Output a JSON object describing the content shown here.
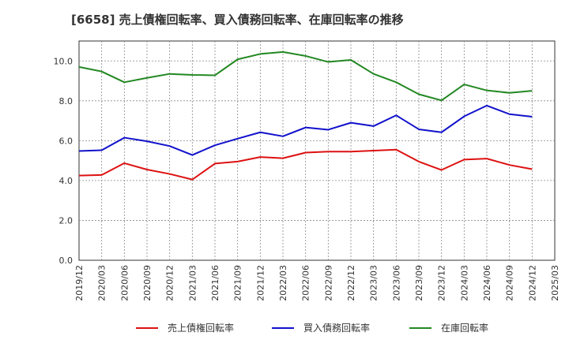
{
  "chart_data": {
    "type": "line",
    "title": "[6658]  売上債権回転率、買入債務回転率、在庫回転率の推移",
    "xlabel": "",
    "ylabel": "",
    "ylim": [
      0,
      11
    ],
    "yticks": [
      "0.0",
      "2.0",
      "4.0",
      "6.0",
      "8.0",
      "10.0"
    ],
    "ytick_values": [
      0,
      2,
      4,
      6,
      8,
      10
    ],
    "categories": [
      "2019/12",
      "2020/03",
      "2020/06",
      "2020/09",
      "2020/12",
      "2021/03",
      "2021/06",
      "2021/09",
      "2021/12",
      "2022/03",
      "2022/06",
      "2022/09",
      "2022/12",
      "2023/03",
      "2023/06",
      "2023/09",
      "2023/12",
      "2024/03",
      "2024/06",
      "2024/09",
      "2024/12",
      "2025/03"
    ],
    "grid": true,
    "legend_position": "bottom",
    "series": [
      {
        "name": "売上債権回転率",
        "color": "#dd1111",
        "values": [
          4.25,
          4.28,
          4.87,
          4.55,
          4.33,
          4.05,
          4.85,
          4.95,
          5.18,
          5.12,
          5.4,
          5.45,
          5.45,
          5.5,
          5.55,
          4.95,
          4.53,
          5.05,
          5.1,
          4.78,
          4.57,
          null
        ]
      },
      {
        "name": "買入債務回転率",
        "color": "#1111cc",
        "values": [
          5.48,
          5.52,
          6.15,
          5.97,
          5.73,
          5.28,
          5.77,
          6.1,
          6.42,
          6.22,
          6.66,
          6.55,
          6.9,
          6.73,
          7.27,
          6.57,
          6.42,
          7.22,
          7.76,
          7.33,
          7.2,
          null
        ]
      },
      {
        "name": "在庫回転率",
        "color": "#228822",
        "values": [
          9.7,
          9.47,
          8.93,
          9.15,
          9.35,
          9.3,
          9.28,
          10.08,
          10.35,
          10.45,
          10.25,
          9.95,
          10.05,
          9.35,
          8.93,
          8.33,
          8.02,
          8.82,
          8.52,
          8.4,
          8.5,
          null
        ]
      }
    ]
  }
}
